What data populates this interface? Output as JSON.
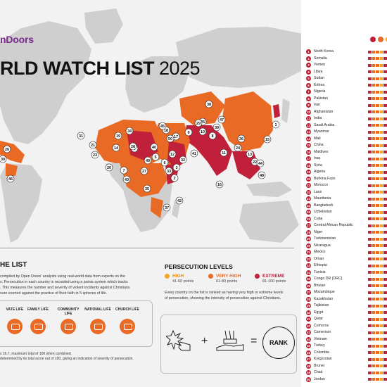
{
  "header": {
    "brand": "nDoors",
    "title_main": "RLD WATCH LIST",
    "title_year": "2025"
  },
  "colors": {
    "high": "#f5a623",
    "very_high": "#e86a24",
    "extreme": "#c0203a",
    "rank_badge": "#b81c2e",
    "land": "#cfcfcf",
    "water": "#f2f2f2"
  },
  "map": {
    "rank_labels": [
      "1",
      "2",
      "3",
      "4",
      "5",
      "6",
      "7",
      "8",
      "9",
      "10",
      "11",
      "12",
      "13",
      "14",
      "15",
      "16",
      "17",
      "18",
      "19",
      "20",
      "21",
      "22",
      "23",
      "24",
      "25",
      "26",
      "27",
      "28",
      "29",
      "30",
      "31",
      "32",
      "33",
      "34",
      "35",
      "36",
      "37",
      "38",
      "39",
      "40",
      "41",
      "42",
      "43",
      "44",
      "45",
      "46",
      "47",
      "48",
      "49",
      "50"
    ]
  },
  "list": {
    "countries": [
      "North Korea",
      "Somalia",
      "Yemen",
      "Libya",
      "Sudan",
      "Eritrea",
      "Nigeria",
      "Pakistan",
      "Iran",
      "Afghanistan",
      "India",
      "Saudi Arabia",
      "Myanmar",
      "Mali",
      "China",
      "Maldives",
      "Iraq",
      "Syria",
      "Algeria",
      "Burkina Faso",
      "Morocco",
      "Laos",
      "Mauritania",
      "Bangladesh",
      "Uzbekistan",
      "Cuba",
      "Central African Republic",
      "Niger",
      "Turkmenistan",
      "Nicaragua",
      "Mexico",
      "Oman",
      "Ethiopia",
      "Tunisia",
      "Congo DR (DRC)",
      "Bhutan",
      "Mozambique",
      "Kazakhstan",
      "Tajikistan",
      "Egypt",
      "Qatar",
      "Comoros",
      "Cameroon",
      "Vietnam",
      "Turkey",
      "Colombia",
      "Kyrgyzstan",
      "Brunei",
      "Chad",
      "Jordan"
    ]
  },
  "the_list": {
    "title": "HE LIST",
    "body": [
      "compiled by Open Doors' analysts using real-world data from experts on the",
      "s. Persecution in each country is recorded using a points system which tracks",
      ". This measures the number and severity of violent incidents against Christians",
      "sure exerted against the practice of their faith in 5 spheres of life."
    ],
    "spheres": [
      {
        "label": "VATE LIFE"
      },
      {
        "label": "FAMILY LIFE"
      },
      {
        "label": "COMMUNITY LIFE"
      },
      {
        "label": "NATIONAL LIFE"
      },
      {
        "label": "CHURCH LIFE"
      }
    ],
    "footnotes": [
      "s 16.7, maximum total of 100 when combined.",
      "determined by its total score out of 100, giving an indication of severity of persecution."
    ]
  },
  "levels": {
    "title": "PERSECUTION LEVELS",
    "items": [
      {
        "name": "HIGH",
        "points": "41-60 points",
        "color": "#f5a623"
      },
      {
        "name": "VERY HIGH",
        "points": "61-80 points",
        "color": "#e86a24"
      },
      {
        "name": "EXTREME",
        "points": "81-100 points",
        "color": "#c0203a"
      }
    ],
    "note": [
      "Every country on the list is ranked as having very high or extreme levels",
      "of persecution, showing the intensity of persecution against Christians."
    ]
  },
  "formula": {
    "plus": "+",
    "equals": "=",
    "rank": "RANK"
  }
}
